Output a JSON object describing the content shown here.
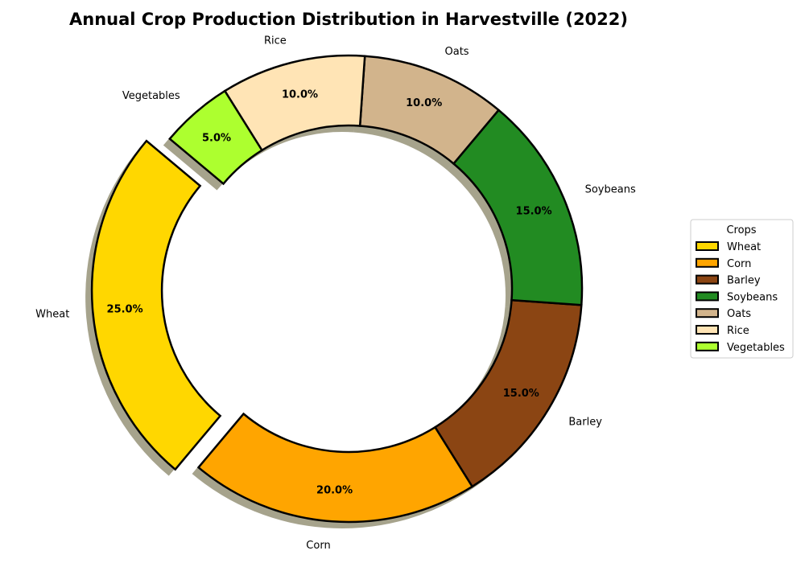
{
  "chart_data": {
    "type": "pie",
    "variant": "donut",
    "title": "Annual Crop Production Distribution in Harvestville (2022)",
    "categories": [
      "Wheat",
      "Corn",
      "Barley",
      "Soybeans",
      "Oats",
      "Rice",
      "Vegetables"
    ],
    "values": [
      25,
      20,
      15,
      15,
      10,
      10,
      5
    ],
    "percent_labels": [
      "25.0%",
      "20.0%",
      "15.0%",
      "15.0%",
      "10.0%",
      "10.0%",
      "5.0%"
    ],
    "colors": [
      "#FFD700",
      "#FFA500",
      "#8B4513",
      "#228B22",
      "#D2B48C",
      "#FFE4B5",
      "#ADFF2F"
    ],
    "exploded": [
      "Wheat"
    ],
    "shadow": true,
    "start_angle_deg": 140,
    "direction": "counterclockwise",
    "legend": {
      "title": "Crops",
      "placement": "right",
      "entries": [
        "Wheat",
        "Corn",
        "Barley",
        "Soybeans",
        "Oats",
        "Rice",
        "Vegetables"
      ]
    }
  }
}
